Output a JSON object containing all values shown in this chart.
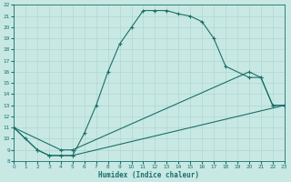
{
  "xlabel": "Humidex (Indice chaleur)",
  "xlim": [
    0,
    23
  ],
  "ylim": [
    8,
    22
  ],
  "xtick_labels": [
    "0",
    "1",
    "2",
    "3",
    "4",
    "5",
    "6",
    "7",
    "8",
    "9",
    "10",
    "11",
    "12",
    "13",
    "14",
    "15",
    "16",
    "17",
    "18",
    "19",
    "20",
    "21",
    "22",
    "23"
  ],
  "xticks": [
    0,
    1,
    2,
    3,
    4,
    5,
    6,
    7,
    8,
    9,
    10,
    11,
    12,
    13,
    14,
    15,
    16,
    17,
    18,
    19,
    20,
    21,
    22,
    23
  ],
  "ytick_labels": [
    "8",
    "9",
    "10",
    "11",
    "12",
    "13",
    "14",
    "15",
    "16",
    "17",
    "18",
    "19",
    "20",
    "21",
    "22"
  ],
  "yticks": [
    8,
    9,
    10,
    11,
    12,
    13,
    14,
    15,
    16,
    17,
    18,
    19,
    20,
    21,
    22
  ],
  "background_color": "#c8e8e4",
  "line_color": "#1a7068",
  "line1_x": [
    0,
    1,
    2,
    3,
    4,
    5,
    6,
    7,
    8,
    9,
    10,
    11,
    12,
    13,
    14,
    15,
    16,
    17,
    18,
    20,
    21,
    22,
    23
  ],
  "line1_y": [
    11,
    10,
    9,
    8.5,
    8.5,
    8.5,
    10.5,
    13,
    16,
    18.5,
    20,
    21.5,
    21.5,
    21.5,
    21.2,
    21,
    20.5,
    19,
    16.5,
    15.5,
    15.5,
    13,
    13
  ],
  "line2_x": [
    0,
    2,
    3,
    4,
    5,
    23
  ],
  "line2_y": [
    11,
    9,
    8.5,
    8.5,
    8.5,
    13
  ],
  "line3_x": [
    0,
    4,
    5,
    20,
    21,
    22,
    23
  ],
  "line3_y": [
    11,
    9,
    9,
    16,
    15.5,
    13,
    13
  ]
}
